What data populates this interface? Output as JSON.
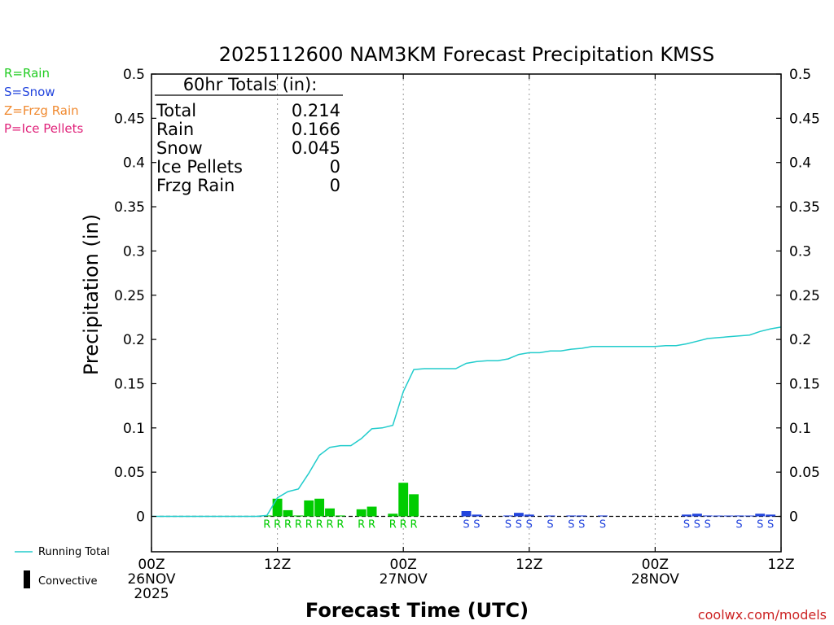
{
  "chart_data": {
    "type": "bar",
    "title": "2025112600 NAM3KM Forecast Precipitation KMSS",
    "xlabel": "Forecast Time (UTC)",
    "ylabel": "Precipitation (in)",
    "ylim": [
      -0.04,
      0.5
    ],
    "yticks": [
      0,
      0.05,
      0.1,
      0.15,
      0.2,
      0.25,
      0.3,
      0.35,
      0.4,
      0.45,
      0.5
    ],
    "ytick_labels": [
      "0",
      "0.05",
      "0.1",
      "0.15",
      "0.2",
      "0.25",
      "0.3",
      "0.35",
      "0.4",
      "0.45",
      "0.5"
    ],
    "xlim_hours": [
      0,
      60
    ],
    "xticks": [
      {
        "hour": 0,
        "lines": [
          "00Z",
          "26NOV",
          "2025"
        ]
      },
      {
        "hour": 12,
        "lines": [
          "12Z"
        ]
      },
      {
        "hour": 24,
        "lines": [
          "00Z",
          "27NOV"
        ]
      },
      {
        "hour": 36,
        "lines": [
          "12Z"
        ]
      },
      {
        "hour": 48,
        "lines": [
          "00Z",
          "28NOV"
        ]
      },
      {
        "hour": 60,
        "lines": [
          "12Z"
        ]
      }
    ],
    "grid": "vertical dotted at 12Z/00Z",
    "type_legend": [
      {
        "label": "R=Rain",
        "color": "#22cc22"
      },
      {
        "label": "S=Snow",
        "color": "#2244dd"
      },
      {
        "label": "Z=Frzg Rain",
        "color": "#f08a30"
      },
      {
        "label": "P=Ice Pellets",
        "color": "#e0227a"
      }
    ],
    "totals": {
      "header": "60hr Totals (in):",
      "rows": [
        {
          "label": "Total",
          "value": "0.214"
        },
        {
          "label": "Rain",
          "value": "0.166"
        },
        {
          "label": "Snow",
          "value": "0.045"
        },
        {
          "label": "Ice Pellets",
          "value": "0"
        },
        {
          "label": "Frzg Rain",
          "value": "0"
        }
      ]
    },
    "series_legend": {
      "running_total_label": "Running Total",
      "convective_label": "Convective"
    },
    "colors": {
      "rain": "#00cc00",
      "snow": "#2244dd",
      "running_total": "#22cccc",
      "convective": "#000000"
    },
    "bars": [
      {
        "hour": 11,
        "value": 0.001,
        "type": "R"
      },
      {
        "hour": 12,
        "value": 0.02,
        "type": "R"
      },
      {
        "hour": 13,
        "value": 0.007,
        "type": "R"
      },
      {
        "hour": 14,
        "value": 0.001,
        "type": "R"
      },
      {
        "hour": 15,
        "value": 0.018,
        "type": "R"
      },
      {
        "hour": 16,
        "value": 0.02,
        "type": "R"
      },
      {
        "hour": 17,
        "value": 0.009,
        "type": "R"
      },
      {
        "hour": 18,
        "value": 0.001,
        "type": "R"
      },
      {
        "hour": 20,
        "value": 0.008,
        "type": "R"
      },
      {
        "hour": 21,
        "value": 0.011,
        "type": "R"
      },
      {
        "hour": 23,
        "value": 0.003,
        "type": "R"
      },
      {
        "hour": 24,
        "value": 0.038,
        "type": "R"
      },
      {
        "hour": 25,
        "value": 0.025,
        "type": "R"
      },
      {
        "hour": 30,
        "value": 0.006,
        "type": "S"
      },
      {
        "hour": 31,
        "value": 0.002,
        "type": "S"
      },
      {
        "hour": 34,
        "value": 0.001,
        "type": "S"
      },
      {
        "hour": 35,
        "value": 0.004,
        "type": "S"
      },
      {
        "hour": 36,
        "value": 0.002,
        "type": "S"
      },
      {
        "hour": 38,
        "value": 0.001,
        "type": "S"
      },
      {
        "hour": 40,
        "value": 0.001,
        "type": "S"
      },
      {
        "hour": 41,
        "value": 0.001,
        "type": "S"
      },
      {
        "hour": 43,
        "value": 0.001,
        "type": "S"
      },
      {
        "hour": 51,
        "value": 0.002,
        "type": "S"
      },
      {
        "hour": 52,
        "value": 0.003,
        "type": "S"
      },
      {
        "hour": 53,
        "value": 0.001,
        "type": "S"
      },
      {
        "hour": 54,
        "value": 0.0005,
        "type": "S"
      },
      {
        "hour": 55,
        "value": 0.0005,
        "type": "S"
      },
      {
        "hour": 56,
        "value": 0.001,
        "type": "S"
      },
      {
        "hour": 57,
        "value": 0.0005,
        "type": "S"
      },
      {
        "hour": 58,
        "value": 0.003,
        "type": "S"
      },
      {
        "hour": 59,
        "value": 0.002,
        "type": "S"
      }
    ],
    "running_total": {
      "hours": [
        0,
        1,
        2,
        3,
        4,
        5,
        6,
        7,
        8,
        9,
        10,
        11,
        12,
        13,
        14,
        15,
        16,
        17,
        18,
        19,
        20,
        21,
        22,
        23,
        24,
        25,
        26,
        27,
        28,
        29,
        30,
        31,
        32,
        33,
        34,
        35,
        36,
        37,
        38,
        39,
        40,
        41,
        42,
        43,
        44,
        45,
        46,
        47,
        48,
        49,
        50,
        51,
        52,
        53,
        54,
        55,
        56,
        57,
        58,
        59,
        60
      ],
      "values": [
        0,
        0,
        0,
        0,
        0,
        0,
        0,
        0,
        0,
        0,
        0,
        0.001,
        0.021,
        0.028,
        0.031,
        0.049,
        0.069,
        0.078,
        0.08,
        0.08,
        0.088,
        0.099,
        0.1,
        0.103,
        0.141,
        0.166,
        0.167,
        0.167,
        0.167,
        0.167,
        0.173,
        0.175,
        0.176,
        0.176,
        0.178,
        0.183,
        0.185,
        0.185,
        0.187,
        0.187,
        0.189,
        0.19,
        0.192,
        0.192,
        0.192,
        0.192,
        0.192,
        0.192,
        0.192,
        0.193,
        0.193,
        0.195,
        0.198,
        0.201,
        0.202,
        0.203,
        0.204,
        0.205,
        0.209,
        0.212,
        0.214
      ]
    }
  },
  "credit": "coolwx.com/models"
}
